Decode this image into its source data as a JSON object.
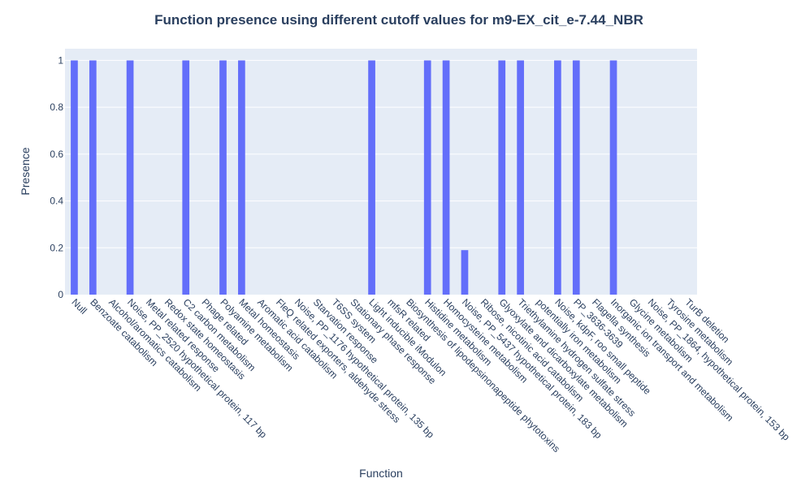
{
  "chart_data": {
    "type": "bar",
    "title": "Function presence using different cutoff values for m9-EX_cit_e-7.44_NBR",
    "xlabel": "Function",
    "ylabel": "Presence",
    "ylim": [
      0,
      1.05
    ],
    "yticks": [
      0,
      0.2,
      0.4,
      0.6,
      0.8,
      1
    ],
    "ytick_labels": [
      "0",
      "0.2",
      "0.4",
      "0.6",
      "0.8",
      "1"
    ],
    "grid": true,
    "colors": {
      "bar": "#636efa",
      "plot_bg": "#e5ecf6",
      "grid": "#ffffff",
      "text": "#2a3f5f"
    },
    "categories": [
      "Null",
      "Benzoate catabolism",
      "Alcohol/aromatics catabolism",
      "Noise, PP_2520 hypothetical protein, 117 bp",
      "Metal related response",
      "Redox state homeostasis",
      "C2 carbon metabolism",
      "Phage related",
      "Polyamine metabolism",
      "Metal homeostasis",
      "Aromatic acid catabolism",
      "FleQ related exporters, aldehyde stress",
      "Noise, PP_1176 hypothetical protein, 135 bp",
      "Starvation response",
      "T6SS system",
      "Stationary phase response",
      "Light inducible iModulon",
      "mfsR related",
      "Biosynthesis of lipodepsinonapeptide phytotoxins",
      "Histidine metabolism",
      "Homocysteine metabolism",
      "Noise, PP_5437 hypothetical protein, 183 bp",
      "Ribose, nicotinic acid catabolism",
      "Glyoxylate and dicarboxylate metabolism",
      "Triethylamine hydrogen sulfate stress",
      "potentially iron metabolism",
      "Noise, kdpF, roo small peptide",
      "PP_3636-3639",
      "Flagella synthesis",
      "Inorganic ion transport and metabolism",
      "Glycine metabolism",
      "Noise, PP_1864, hypothetical protein, 153 bp",
      "Tyrosine metabolism",
      "TurB deletion"
    ],
    "series": [
      {
        "values": [
          1,
          0,
          0,
          0,
          0,
          0,
          0,
          0,
          0,
          0,
          0,
          0,
          0,
          0,
          0,
          0,
          0,
          0,
          0,
          0,
          0,
          0,
          0,
          0,
          0,
          0,
          0,
          0,
          0,
          0,
          0,
          0,
          0,
          0
        ]
      },
      {
        "values": [
          0,
          1,
          0,
          0,
          0,
          0,
          0,
          0,
          0,
          0,
          0,
          0,
          0,
          0,
          0,
          0,
          0,
          0,
          0,
          0,
          0,
          0,
          0,
          0,
          0,
          0,
          0,
          0,
          0,
          0,
          0,
          0,
          0,
          0
        ]
      },
      {
        "values": [
          0,
          0,
          0,
          1,
          0,
          0,
          0,
          0,
          0,
          0,
          0,
          0,
          0,
          0,
          0,
          0,
          0,
          0,
          0,
          0,
          0,
          0,
          0,
          0,
          0,
          0,
          0,
          0,
          0,
          0,
          0,
          0,
          0,
          0
        ]
      },
      {
        "values": [
          0,
          0,
          0,
          0,
          0,
          0,
          1,
          0,
          0,
          0,
          0,
          0,
          0,
          0,
          0,
          0,
          0,
          0,
          0,
          0,
          0,
          0,
          0,
          0,
          0,
          0,
          0,
          0,
          0,
          0,
          0,
          0,
          0,
          0
        ]
      },
      {
        "values": [
          0,
          0,
          0,
          0,
          0,
          0,
          0,
          0,
          1,
          0,
          0,
          0,
          0,
          0,
          0,
          0,
          0,
          0,
          0,
          0,
          0,
          0,
          0,
          0,
          0,
          0,
          0,
          0,
          0,
          0,
          0,
          0,
          0,
          0
        ]
      },
      {
        "values": [
          0,
          0,
          0,
          0,
          0,
          0,
          0,
          0,
          0,
          1,
          0,
          0,
          0,
          0,
          0,
          0,
          0,
          0,
          0,
          0,
          0,
          0,
          0,
          0,
          0,
          0,
          0,
          0,
          0,
          0,
          0,
          0,
          0,
          0
        ]
      },
      {
        "values": [
          0,
          0,
          0,
          0,
          0,
          0,
          0,
          0,
          0,
          0,
          0,
          0,
          0,
          0,
          0,
          0,
          1,
          0,
          0,
          0,
          0,
          0,
          0,
          0,
          0,
          0,
          0,
          0,
          0,
          0,
          0,
          0,
          0,
          0
        ]
      },
      {
        "values": [
          0,
          0,
          0,
          0,
          0,
          0,
          0,
          0,
          0,
          0,
          0,
          0,
          0,
          0,
          0,
          0,
          0,
          0,
          0,
          1,
          0,
          0,
          0,
          0,
          0,
          0,
          0,
          0,
          0,
          0,
          0,
          0,
          0,
          0
        ]
      },
      {
        "values": [
          0,
          0,
          0,
          0,
          0,
          0,
          0,
          0,
          0,
          0,
          0,
          0,
          0,
          0,
          0,
          0,
          0,
          0,
          0,
          0,
          1,
          0,
          0,
          0,
          0,
          0,
          0,
          0,
          0,
          0,
          0,
          0,
          0,
          0
        ]
      },
      {
        "values": [
          0,
          0,
          0,
          0,
          0,
          0,
          0,
          0,
          0,
          0,
          0,
          0,
          0,
          0,
          0,
          0,
          0,
          0,
          0,
          0,
          0,
          0.19,
          0,
          0,
          0,
          0,
          0,
          0,
          0,
          0,
          0,
          0,
          0,
          0
        ]
      },
      {
        "values": [
          0,
          0,
          0,
          0,
          0,
          0,
          0,
          0,
          0,
          0,
          0,
          0,
          0,
          0,
          0,
          0,
          0,
          0,
          0,
          0,
          0,
          0,
          0,
          1,
          0,
          0,
          0,
          0,
          0,
          0,
          0,
          0,
          0,
          0
        ]
      },
      {
        "values": [
          0,
          0,
          0,
          0,
          0,
          0,
          0,
          0,
          0,
          0,
          0,
          0,
          0,
          0,
          0,
          0,
          0,
          0,
          0,
          0,
          0,
          0,
          0,
          0,
          1,
          0,
          0,
          0,
          0,
          0,
          0,
          0,
          0,
          0
        ]
      },
      {
        "values": [
          0,
          0,
          0,
          0,
          0,
          0,
          0,
          0,
          0,
          0,
          0,
          0,
          0,
          0,
          0,
          0,
          0,
          0,
          0,
          0,
          0,
          0,
          0,
          0,
          0,
          0,
          1,
          0,
          0,
          0,
          0,
          0,
          0,
          0
        ]
      },
      {
        "values": [
          0,
          0,
          0,
          0,
          0,
          0,
          0,
          0,
          0,
          0,
          0,
          0,
          0,
          0,
          0,
          0,
          0,
          0,
          0,
          0,
          0,
          0,
          0,
          0,
          0,
          0,
          0,
          1,
          0,
          0,
          0,
          0,
          0,
          0
        ]
      },
      {
        "values": [
          0,
          0,
          0,
          0,
          0,
          0,
          0,
          0,
          0,
          0,
          0,
          0,
          0,
          0,
          0,
          0,
          0,
          0,
          0,
          0,
          0,
          0,
          0,
          0,
          0,
          0,
          0,
          0,
          0,
          1,
          0,
          0,
          0,
          0
        ]
      }
    ],
    "bars": [
      {
        "category": "Null",
        "value": 1
      },
      {
        "category": "Benzoate catabolism",
        "value": 1
      },
      {
        "category": "Noise, PP_2520 hypothetical protein, 117 bp",
        "value": 1
      },
      {
        "category": "C2 carbon metabolism",
        "value": 1
      },
      {
        "category": "Polyamine metabolism",
        "value": 1
      },
      {
        "category": "Metal homeostasis",
        "value": 1
      },
      {
        "category": "Light inducible iModulon",
        "value": 1
      },
      {
        "category": "Histidine metabolism",
        "value": 1
      },
      {
        "category": "Homocysteine metabolism",
        "value": 1
      },
      {
        "category": "Noise, PP_5437 hypothetical protein, 183 bp",
        "value": 0.19
      },
      {
        "category": "Glyoxylate and dicarboxylate metabolism",
        "value": 1
      },
      {
        "category": "Triethylamine hydrogen sulfate stress",
        "value": 1
      },
      {
        "category": "Noise, kdpF, roo small peptide",
        "value": 1
      },
      {
        "category": "PP_3636-3639",
        "value": 1
      },
      {
        "category": "Inorganic ion transport and metabolism",
        "value": 1
      }
    ]
  }
}
